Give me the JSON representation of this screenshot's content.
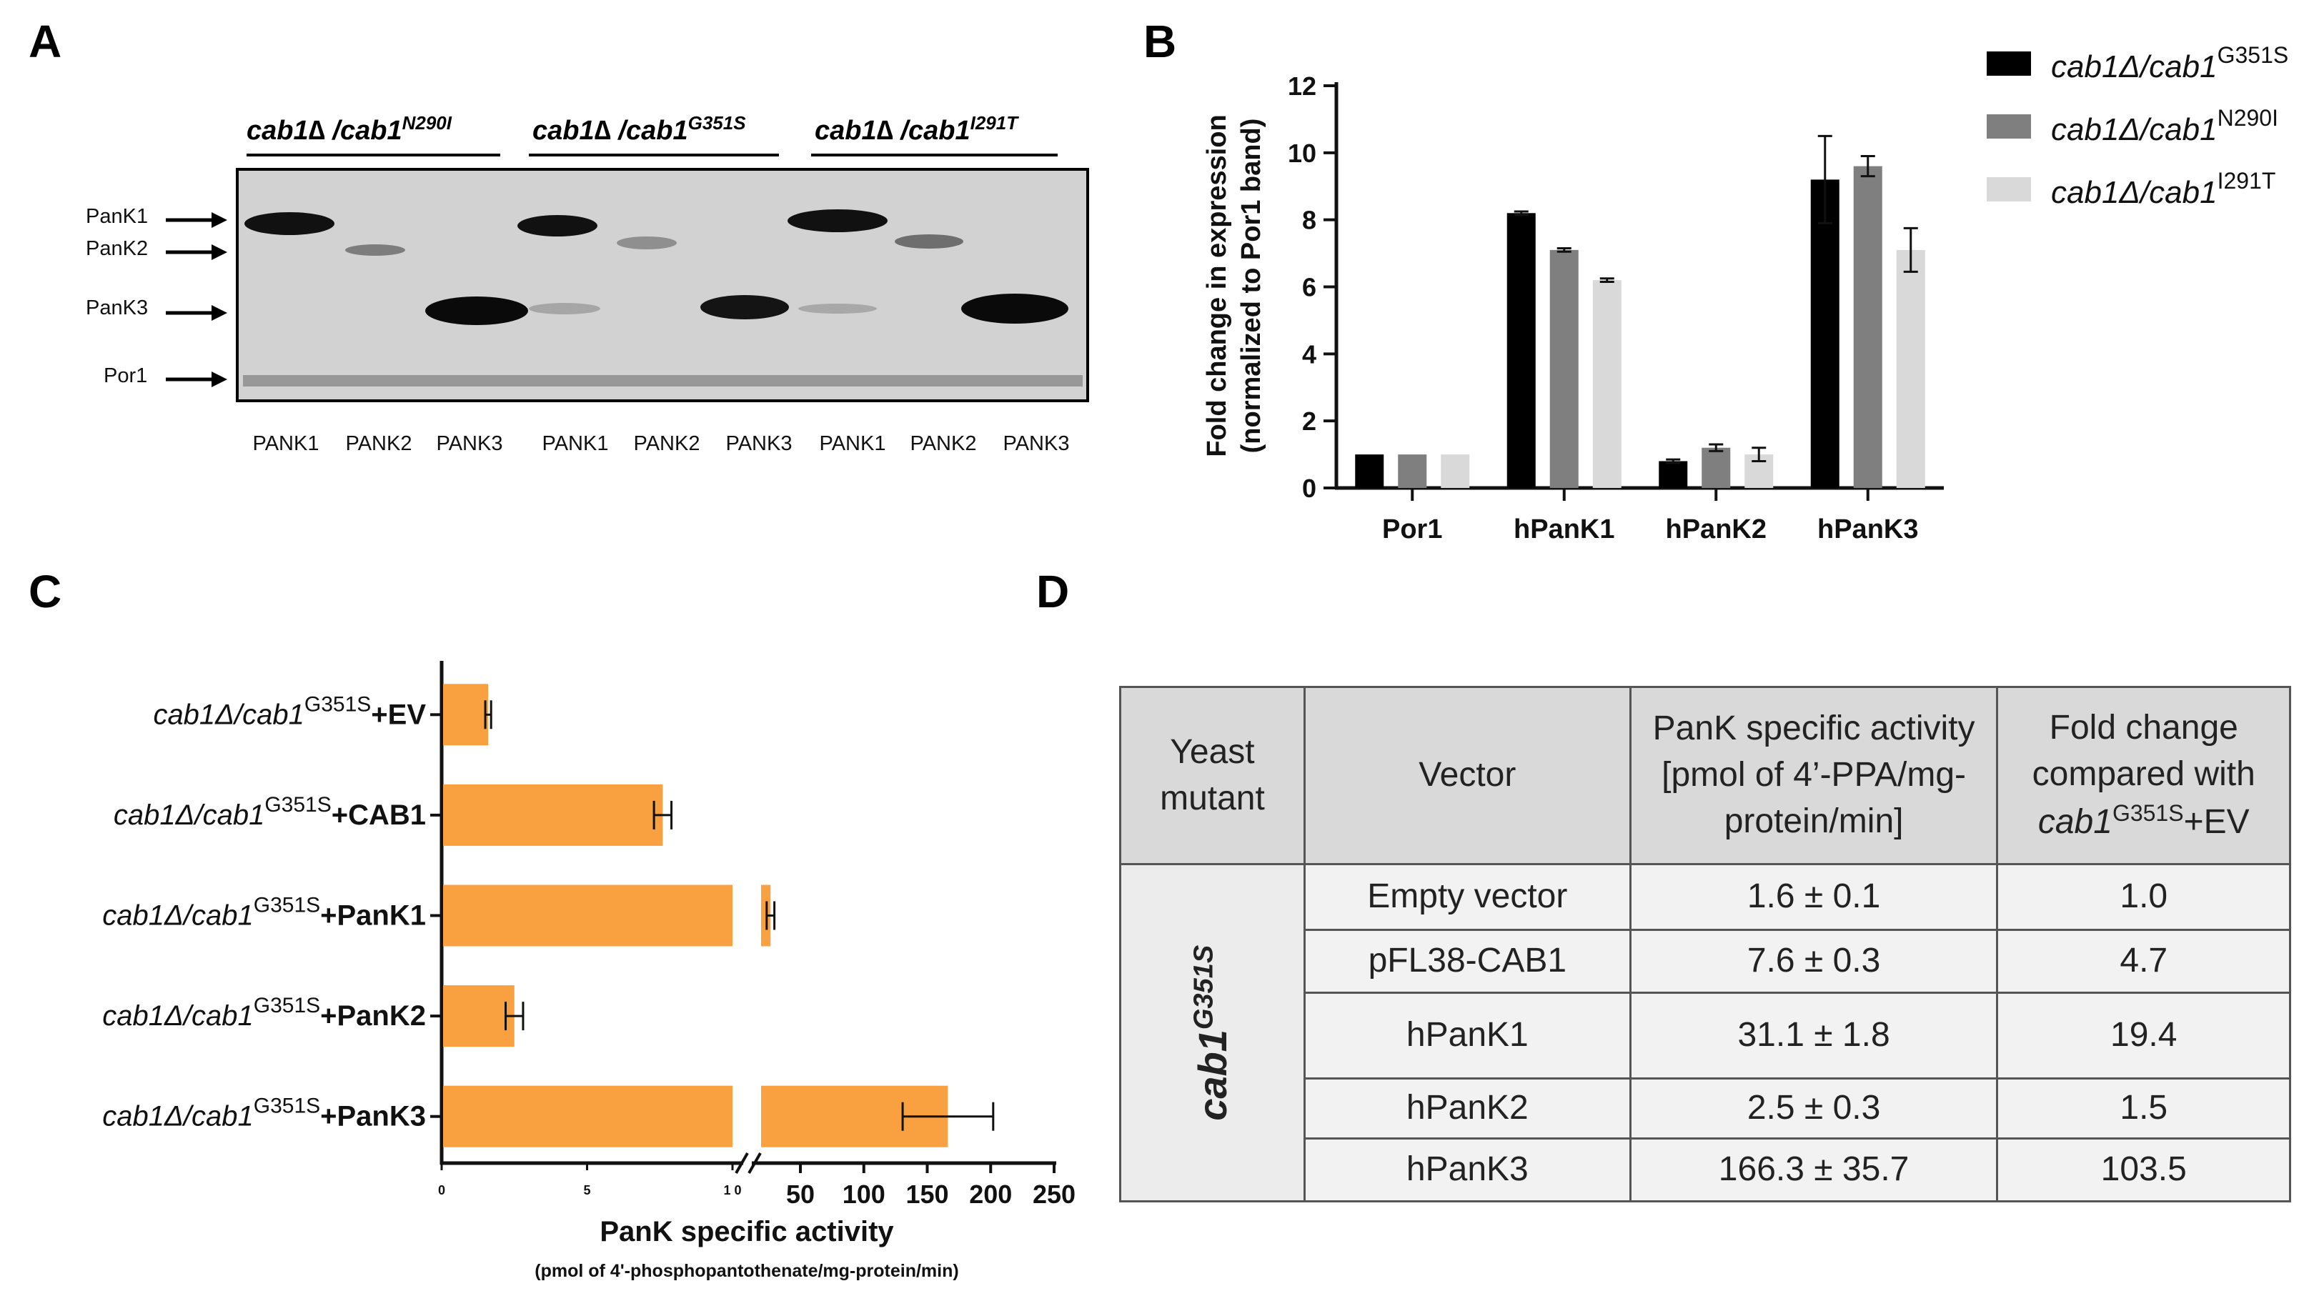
{
  "panels": {
    "a": "A",
    "b": "B",
    "c": "C",
    "d": "D"
  },
  "panel_a": {
    "genotypes": [
      {
        "base": "cab1∆ /cab1",
        "sup": "N290I"
      },
      {
        "base": "cab1∆ /cab1",
        "sup": "G351S"
      },
      {
        "base": "cab1∆ /cab1",
        "sup": "I291T"
      }
    ],
    "band_labels": [
      "PanK1",
      "PanK2",
      "PanK3",
      "Por1"
    ],
    "lanes": [
      "PANK1",
      "PANK2",
      "PANK3",
      "PANK1",
      "PANK2",
      "PANK3",
      "PANK1",
      "PANK2",
      "PANK3"
    ]
  },
  "chart_data": [
    {
      "type": "bar",
      "panel": "B",
      "ylabel_line1": "Fold change in expression",
      "ylabel_line2": "(normalized to Por1 band)",
      "categories": [
        "Por1",
        "hPanK1",
        "hPanK2",
        "hPanK3"
      ],
      "ylim": [
        0,
        12
      ],
      "yticks": [
        "0",
        "2",
        "4",
        "6",
        "8",
        "10",
        "12"
      ],
      "series": [
        {
          "name": "cab1Δ/cab1",
          "sup": "G351S",
          "color": "#000000",
          "values": [
            1.0,
            8.2,
            0.8,
            9.2
          ],
          "errors": [
            0,
            0.05,
            0.05,
            1.3
          ]
        },
        {
          "name": "cab1Δ/cab1",
          "sup": "N290I",
          "color": "#7f7f7f",
          "values": [
            1.0,
            7.1,
            1.2,
            9.6
          ],
          "errors": [
            0,
            0.05,
            0.1,
            0.3
          ]
        },
        {
          "name": "cab1Δ/cab1",
          "sup": "I291T",
          "color": "#d9d9d9",
          "values": [
            1.0,
            6.2,
            1.0,
            7.1
          ],
          "errors": [
            0,
            0.05,
            0.2,
            0.65
          ]
        }
      ],
      "legend": "top-right"
    },
    {
      "type": "bar",
      "panel": "C",
      "orientation": "horizontal",
      "color": "#f9a040",
      "categories": [
        {
          "pre": "cab1Δ/cab1",
          "sup": "G351S",
          "post": "+EV"
        },
        {
          "pre": "cab1Δ/cab1",
          "sup": "G351S",
          "post": "+CAB1"
        },
        {
          "pre": "cab1Δ/cab1",
          "sup": "G351S",
          "post": "+PanK1"
        },
        {
          "pre": "cab1Δ/cab1",
          "sup": "G351S",
          "post": "+PanK2"
        },
        {
          "pre": "cab1Δ/cab1",
          "sup": "G351S",
          "post": "+PanK3"
        }
      ],
      "values": [
        1.6,
        7.6,
        31.1,
        2.5,
        166.3
      ],
      "errors": [
        0.1,
        0.3,
        1.8,
        0.3,
        35.7
      ],
      "axis_break": [
        10,
        30
      ],
      "xticks_low": [
        "0",
        "5",
        "1 0"
      ],
      "xticks_high": [
        "50",
        "100",
        "150",
        "200",
        "250"
      ],
      "xlabel": "PanK specific activity",
      "xlabel_sub": "(pmol of 4'-phosphopantothenate/mg-protein/min)"
    }
  ],
  "table": {
    "headers": {
      "col1": "Yeast mutant",
      "col2": "Vector",
      "col3_l1": "PanK specific activity",
      "col3_l2": "[pmol of 4’-PPA/mg-",
      "col3_l3": "protein/min]",
      "col4_l1": "Fold change",
      "col4_l2": "compared with",
      "col4_gene": "cab1",
      "col4_sup": "G351S",
      "col4_post": "+EV"
    },
    "mutant_base": "cab1",
    "mutant_sup": "G351S",
    "rows": [
      {
        "vector": "Empty vector",
        "activity": "1.6 ± 0.1",
        "fold": "1.0"
      },
      {
        "vector": "pFL38-CAB1",
        "activity": "7.6 ± 0.3",
        "fold": "4.7"
      },
      {
        "vector": "hPanK1",
        "activity": "31.1 ± 1.8",
        "fold": "19.4"
      },
      {
        "vector": "hPanK2",
        "activity": "2.5 ± 0.3",
        "fold": "1.5"
      },
      {
        "vector": "hPanK3",
        "activity": "166.3 ± 35.7",
        "fold": "103.5"
      }
    ]
  }
}
